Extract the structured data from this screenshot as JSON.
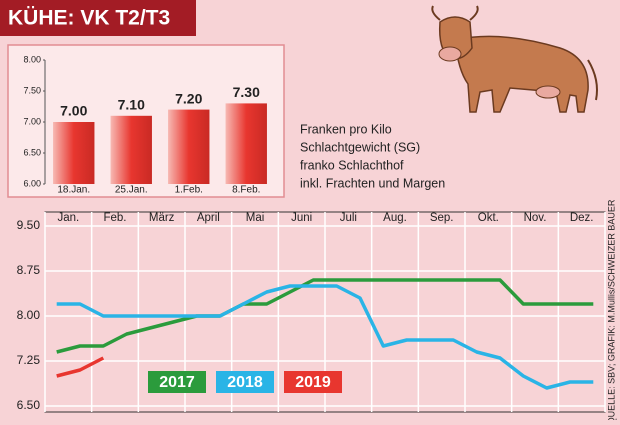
{
  "title": "KÜHE: VK T2/T3",
  "note_lines": [
    "Franken pro Kilo",
    "Schlachtgewicht (SG)",
    "franko Schlachthof",
    "inkl. Frachten und Margen"
  ],
  "source": "QUELLE: SBV; GRAFIK: M.Mullis/SCHWEIZER BAUER",
  "chart_data": [
    {
      "type": "bar",
      "categories": [
        "18.Jan.",
        "25.Jan.",
        "1.Feb.",
        "8.Feb."
      ],
      "values": [
        7.0,
        7.1,
        7.2,
        7.3
      ],
      "value_labels": [
        "7.00",
        "7.10",
        "7.20",
        "7.30"
      ],
      "color": "#e8362f",
      "ylim": [
        6,
        8
      ],
      "yticks": [
        {
          "value": 6,
          "label": "6.00"
        },
        {
          "value": 6.5,
          "label": "6.50"
        },
        {
          "value": 7,
          "label": "7.00"
        },
        {
          "value": 7.5,
          "label": "7.50"
        },
        {
          "value": 8,
          "label": "8.00"
        }
      ],
      "grid": false
    },
    {
      "type": "line",
      "categories": [
        "Jan.",
        null,
        "Feb.",
        null,
        "März",
        null,
        "April",
        null,
        "Mai",
        null,
        "Juni",
        null,
        "Juli",
        null,
        "Aug.",
        null,
        "Sep.",
        null,
        "Okt.",
        null,
        "Nov.",
        null,
        "Dez.",
        null
      ],
      "series": [
        {
          "name": "2017",
          "color": "#2b9b3c",
          "values": [
            7.4,
            7.5,
            7.5,
            7.7,
            7.8,
            7.9,
            8.0,
            8.0,
            8.2,
            8.2,
            8.4,
            8.6,
            8.6,
            8.6,
            8.6,
            8.6,
            8.6,
            8.6,
            8.6,
            8.6,
            8.2,
            8.2,
            8.2,
            8.2
          ]
        },
        {
          "name": "2018",
          "color": "#2ab4e6",
          "values": [
            8.2,
            8.2,
            8.0,
            8.0,
            8.0,
            8.0,
            8.0,
            8.0,
            8.2,
            8.4,
            8.5,
            8.5,
            8.5,
            8.3,
            7.5,
            7.6,
            7.6,
            7.6,
            7.4,
            7.3,
            7.0,
            6.8,
            6.9,
            6.9
          ]
        },
        {
          "name": "2019",
          "color": "#e8362f",
          "values": [
            7.0,
            7.1,
            7.3,
            null,
            null,
            null,
            null,
            null,
            null,
            null,
            null,
            null,
            null,
            null,
            null,
            null,
            null,
            null,
            null,
            null,
            null,
            null,
            null,
            null
          ]
        }
      ],
      "ylim": [
        6.5,
        9.5
      ],
      "yticks": [
        {
          "value": 6.5,
          "label": "6.50"
        },
        {
          "value": 7.25,
          "label": "7.25"
        },
        {
          "value": 8,
          "label": "8.00"
        },
        {
          "value": 8.75,
          "label": "8.75"
        },
        {
          "value": 9.5,
          "label": "9.50"
        }
      ],
      "grid": true
    }
  ]
}
